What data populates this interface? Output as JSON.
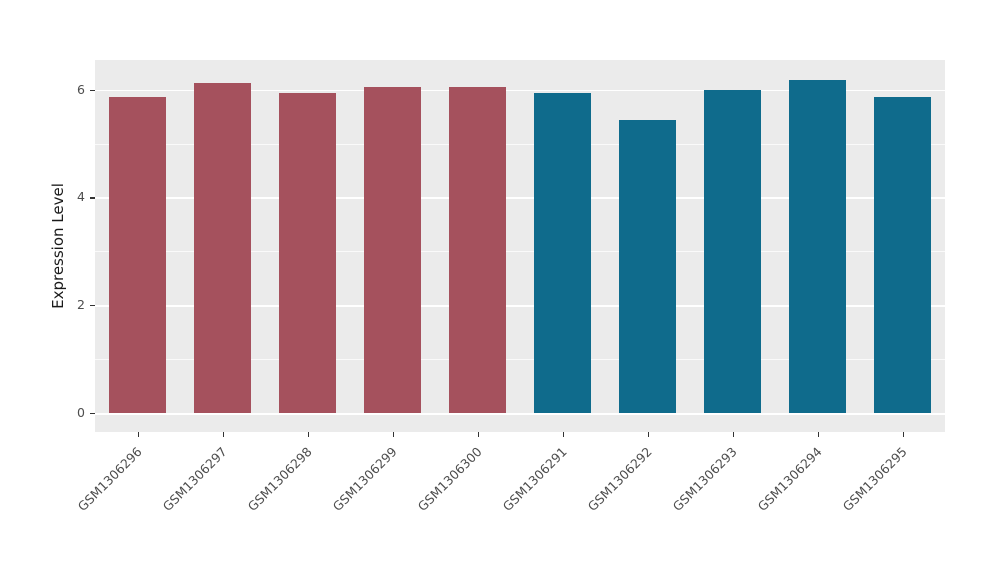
{
  "chart_data": {
    "type": "bar",
    "title": "",
    "xlabel": "",
    "ylabel": "Expression Level",
    "categories": [
      "GSM1306296",
      "GSM1306297",
      "GSM1306298",
      "GSM1306299",
      "GSM1306300",
      "GSM1306291",
      "GSM1306292",
      "GSM1306293",
      "GSM1306294",
      "GSM1306295"
    ],
    "values": [
      5.86,
      6.12,
      5.94,
      6.04,
      6.04,
      5.93,
      5.43,
      6.0,
      6.17,
      5.86
    ],
    "bar_colors": [
      "#A5515D",
      "#A5515D",
      "#A5515D",
      "#A5515D",
      "#A5515D",
      "#0F6B8C",
      "#0F6B8C",
      "#0F6B8C",
      "#0F6B8C",
      "#0F6B8C"
    ],
    "group_colors": {
      "group1": "#A5515D",
      "group2": "#0F6B8C"
    },
    "ylim": [
      0,
      6.55
    ],
    "yticks": [
      0,
      2,
      4,
      6
    ],
    "minor_ticks": [
      1,
      3,
      5
    ],
    "grid": "on",
    "legend": "none",
    "panel_bg": "#EBEBEB",
    "grid_color": "#FFFFFF"
  }
}
